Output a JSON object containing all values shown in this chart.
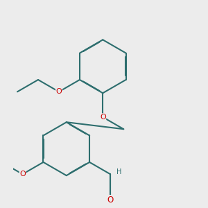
{
  "bg": "#ececec",
  "bond_color": "#2d6e6e",
  "O_color": "#cc0000",
  "lw": 1.5,
  "dbg": 0.012,
  "fs": 8,
  "fig_size": [
    3.0,
    3.0
  ],
  "dpi": 100,
  "upper_ring": [
    0.565,
    0.7
  ],
  "lower_ring": [
    0.43,
    0.385
  ],
  "ring_r": 0.115
}
